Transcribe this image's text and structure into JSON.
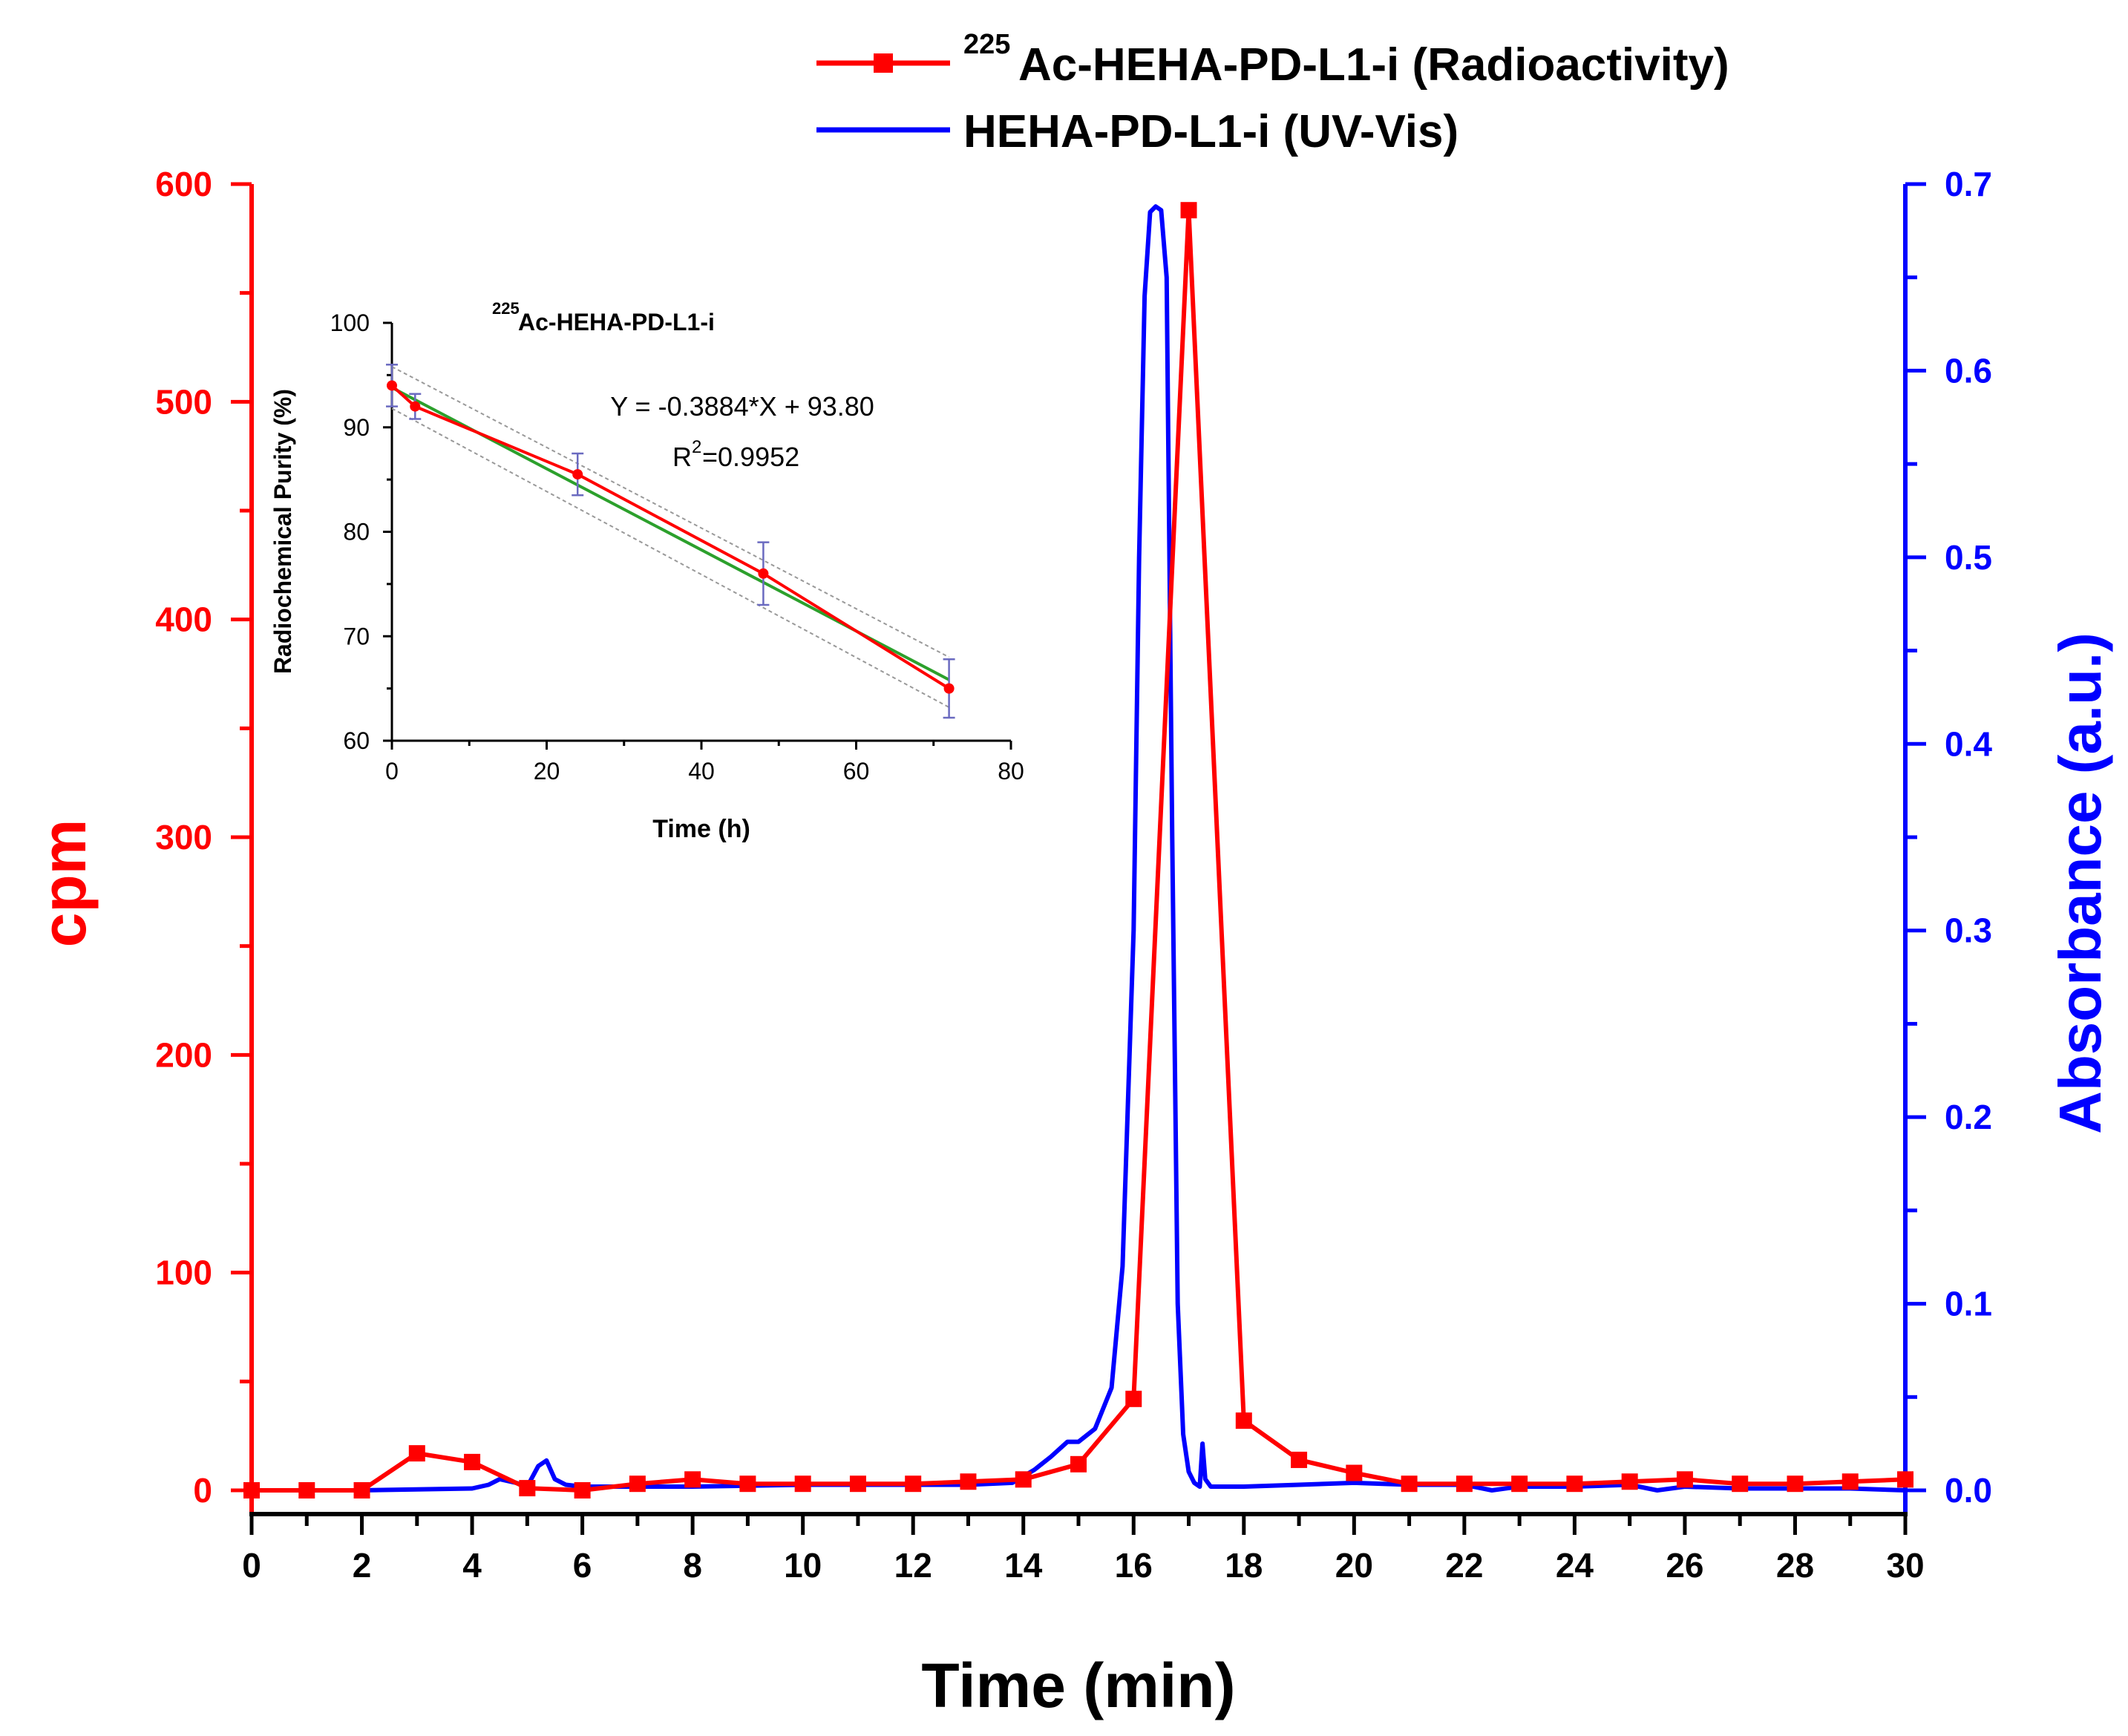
{
  "chart_data": [
    {
      "type": "line",
      "role": "main",
      "xlabel": "Time (min)",
      "ylabel_left": "cpm",
      "ylabel_right": "Absorbance (a.u.)",
      "xlim": [
        0,
        30
      ],
      "ylim_left": [
        0,
        600
      ],
      "ylim_right": [
        0,
        0.7
      ],
      "x_ticks": [
        "0",
        "2",
        "4",
        "6",
        "8",
        "10",
        "12",
        "14",
        "16",
        "18",
        "20",
        "22",
        "24",
        "26",
        "28",
        "30"
      ],
      "y_left_ticks": [
        "0",
        "100",
        "200",
        "300",
        "400",
        "500",
        "600"
      ],
      "y_right_ticks": [
        "0.0",
        "0.1",
        "0.2",
        "0.3",
        "0.4",
        "0.5",
        "0.6",
        "0.7"
      ],
      "legend": {
        "position": "top",
        "entries": [
          {
            "sup": "225",
            "label": "Ac-HEHA-PD-L1-i (Radioactivity)",
            "color": "#ff0000"
          },
          {
            "sup": "",
            "label": "HEHA-PD-L1-i (UV-Vis)",
            "color": "#0000ff"
          }
        ]
      },
      "series": [
        {
          "name": "225Ac-HEHA-PD-L1-i (Radioactivity)",
          "axis": "left",
          "color": "#ff0000",
          "marker": "square",
          "x": [
            0,
            1,
            2,
            3,
            4,
            5,
            6,
            7,
            8,
            9,
            10,
            11,
            12,
            13,
            14,
            15,
            16,
            17,
            18,
            19,
            20,
            21,
            22,
            23,
            24,
            25,
            26,
            27,
            28,
            29,
            30
          ],
          "values": [
            0,
            0,
            0,
            17,
            13,
            1,
            0,
            3,
            5,
            3,
            3,
            3,
            3,
            4,
            5,
            12,
            42,
            588,
            32,
            14,
            8,
            3,
            3,
            3,
            3,
            4,
            5,
            3,
            3,
            4,
            5
          ]
        },
        {
          "name": "HEHA-PD-L1-i (UV-Vis)",
          "axis": "right",
          "color": "#0000ff",
          "marker": "none",
          "x": [
            0,
            2,
            4,
            4.3,
            4.5,
            4.8,
            5.0,
            5.2,
            5.35,
            5.5,
            5.7,
            6.0,
            8,
            10,
            12,
            13,
            13.8,
            14.2,
            14.5,
            14.8,
            15.0,
            15.3,
            15.6,
            15.8,
            16.0,
            16.1,
            16.2,
            16.3,
            16.4,
            16.5,
            16.6,
            16.7,
            16.8,
            16.9,
            17.0,
            17.1,
            17.2,
            17.25,
            17.3,
            17.4,
            17.6,
            18,
            19,
            20,
            21,
            22,
            22.5,
            23,
            24,
            25,
            25.5,
            26,
            27,
            28,
            29,
            30
          ],
          "values": [
            0,
            0,
            0.001,
            0.003,
            0.006,
            0.004,
            0.002,
            0.013,
            0.016,
            0.006,
            0.003,
            0.002,
            0.002,
            0.003,
            0.003,
            0.003,
            0.004,
            0.011,
            0.018,
            0.026,
            0.026,
            0.033,
            0.055,
            0.12,
            0.3,
            0.5,
            0.64,
            0.685,
            0.688,
            0.686,
            0.65,
            0.35,
            0.1,
            0.03,
            0.01,
            0.004,
            0.002,
            0.025,
            0.006,
            0.002,
            0.002,
            0.002,
            0.003,
            0.004,
            0.003,
            0.003,
            0.0,
            0.002,
            0.002,
            0.003,
            0.0,
            0.002,
            0.001,
            0.001,
            0.001,
            0.0
          ]
        }
      ]
    },
    {
      "type": "line",
      "role": "inset",
      "title_sup": "225",
      "title": "Ac-HEHA-PD-L1-i",
      "xlabel": "Time (h)",
      "ylabel": "Radiochemical Purity (%)",
      "xlim": [
        0,
        80
      ],
      "ylim": [
        60,
        100
      ],
      "x_ticks": [
        "0",
        "20",
        "40",
        "60",
        "80"
      ],
      "y_ticks": [
        "60",
        "70",
        "80",
        "90",
        "100"
      ],
      "equation": "Y = -0.3884*X + 93.80",
      "r2_prefix": "R",
      "r2_sup": "2",
      "r2_value": "=0.9952",
      "series": [
        {
          "name": "Radiochemical purity",
          "color": "#ff0000",
          "marker": "circle",
          "x": [
            0,
            3,
            24,
            48,
            72
          ],
          "values": [
            94.0,
            92.0,
            85.5,
            76.0,
            65.0
          ],
          "error": [
            2.0,
            1.2,
            2.0,
            3.0,
            2.8
          ]
        },
        {
          "name": "Linear fit",
          "color": "#2ca02c",
          "slope": -0.3884,
          "intercept": 93.8,
          "x_range": [
            0,
            72
          ]
        },
        {
          "name": "Confidence band",
          "color": "#999999",
          "upper": [
            [
              0,
              95.8
            ],
            [
              72,
              68.0
            ]
          ],
          "lower": [
            [
              0,
              91.8
            ],
            [
              72,
              63.2
            ]
          ]
        }
      ]
    }
  ]
}
